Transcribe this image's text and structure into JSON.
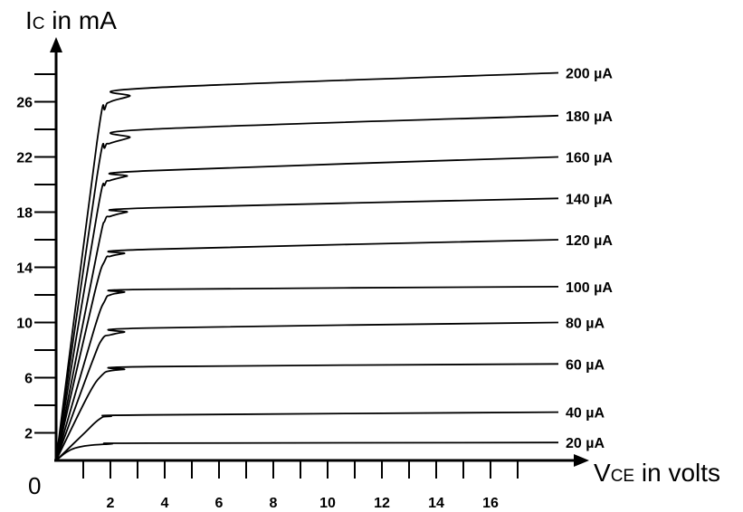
{
  "chart_data": {
    "type": "line",
    "title": "",
    "ylabel": {
      "main": "I",
      "sub": "C",
      "rest": " in mA"
    },
    "xlabel": {
      "main": "V",
      "sub": "CE",
      "rest": " in volts"
    },
    "origin_label": "0",
    "xlim": [
      0,
      19
    ],
    "ylim": [
      0,
      30
    ],
    "x_ticks": [
      1,
      2,
      3,
      4,
      5,
      6,
      7,
      8,
      9,
      10,
      11,
      12,
      13,
      14,
      15,
      16,
      17
    ],
    "x_tick_labels": [
      {
        "value": 2,
        "label": "2"
      },
      {
        "value": 4,
        "label": "4"
      },
      {
        "value": 6,
        "label": "6"
      },
      {
        "value": 8,
        "label": "8"
      },
      {
        "value": 10,
        "label": "10"
      },
      {
        "value": 12,
        "label": "12"
      },
      {
        "value": 14,
        "label": "14"
      },
      {
        "value": 16,
        "label": "16"
      }
    ],
    "y_ticks": [
      2,
      4,
      6,
      8,
      10,
      12,
      14,
      16,
      18,
      20,
      22,
      24,
      26,
      28
    ],
    "y_tick_labels": [
      {
        "value": 2,
        "label": "2"
      },
      {
        "value": 6,
        "label": "6"
      },
      {
        "value": 10,
        "label": "10"
      },
      {
        "value": 14,
        "label": "14"
      },
      {
        "value": 18,
        "label": "18"
      },
      {
        "value": 22,
        "label": "22"
      },
      {
        "value": 26,
        "label": "26"
      }
    ],
    "grid": false,
    "legend": "labels at right end of each curve",
    "series": [
      {
        "name": "20 µA",
        "x": [
          0,
          0.7,
          2,
          3.4,
          18.5
        ],
        "y": [
          0,
          0.9,
          1.2,
          1.25,
          1.3
        ]
      },
      {
        "name": "40 µA",
        "x": [
          0,
          1,
          1.6,
          2,
          3.4,
          18.5
        ],
        "y": [
          0,
          1.9,
          3.0,
          3.2,
          3.3,
          3.5
        ]
      },
      {
        "name": "60 µA",
        "x": [
          0,
          1.2,
          1.7,
          2,
          2.5,
          3.4,
          18.5
        ],
        "y": [
          0,
          4.8,
          6.2,
          6.5,
          6.6,
          6.8,
          7.0
        ]
      },
      {
        "name": "80 µA",
        "x": [
          0,
          1.3,
          1.7,
          2,
          2.5,
          3.4,
          18.5
        ],
        "y": [
          0,
          7.0,
          8.8,
          9.1,
          9.3,
          9.6,
          10.0
        ]
      },
      {
        "name": "100 µA",
        "x": [
          0,
          1.4,
          1.8,
          2,
          2.5,
          3.4,
          18.5
        ],
        "y": [
          0,
          9.5,
          11.6,
          12.0,
          12.2,
          12.4,
          12.6
        ]
      },
      {
        "name": "120 µA",
        "x": [
          0,
          1.4,
          1.8,
          2,
          2.5,
          3.4,
          18.5
        ],
        "y": [
          0,
          12.0,
          14.5,
          14.8,
          15.0,
          15.3,
          16.0
        ]
      },
      {
        "name": "140 µA",
        "x": [
          0,
          1.5,
          1.8,
          2,
          2.6,
          3.4,
          18.5
        ],
        "y": [
          0,
          15.0,
          17.4,
          17.7,
          18.0,
          18.3,
          19.0
        ]
      },
      {
        "name": "160 µA",
        "x": [
          0,
          1.5,
          1.8,
          2,
          2.6,
          3.4,
          18.5
        ],
        "y": [
          0,
          17.8,
          20.0,
          20.3,
          20.6,
          21.0,
          22.0
        ]
      },
      {
        "name": "180 µA",
        "x": [
          0,
          1.5,
          1.8,
          2,
          2.7,
          3.4,
          18.5
        ],
        "y": [
          0,
          20.5,
          22.7,
          23.0,
          23.4,
          24.0,
          25.0
        ]
      },
      {
        "name": "200 µA",
        "x": [
          0,
          1.5,
          1.8,
          2,
          2.7,
          3.4,
          18.5
        ],
        "y": [
          0,
          23.0,
          25.5,
          26.0,
          26.4,
          27.0,
          28.1
        ]
      }
    ]
  }
}
